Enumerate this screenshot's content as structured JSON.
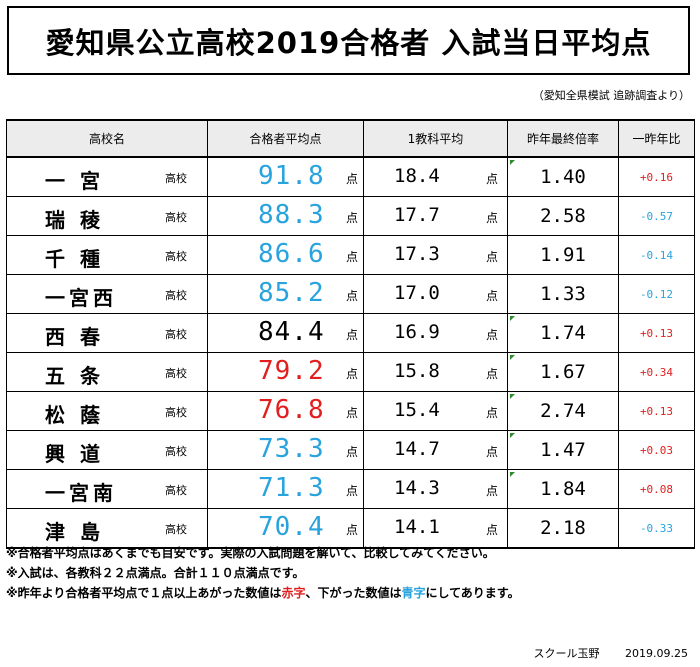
{
  "title": "愛知県公立高校2019合格者 入試当日平均点",
  "source": "（愛知全県模試 追跡調査より）",
  "table": {
    "headers": [
      "高校名",
      "合格者平均点",
      "1教科平均",
      "昨年最終倍率",
      "一昨年比"
    ],
    "kou_label": "高校",
    "ten_label": "点",
    "rows": [
      {
        "name": "一 宮",
        "avg": "91.8",
        "avg_color": "blue",
        "per": "18.4",
        "ratio": "1.40",
        "diff": "+0.16",
        "diff_color": "red"
      },
      {
        "name": "瑞 稜",
        "avg": "88.3",
        "avg_color": "blue",
        "per": "17.7",
        "ratio": "2.58",
        "diff": "-0.57",
        "diff_color": "blue"
      },
      {
        "name": "千 種",
        "avg": "86.6",
        "avg_color": "blue",
        "per": "17.3",
        "ratio": "1.91",
        "diff": "-0.14",
        "diff_color": "blue"
      },
      {
        "name": "一宮西",
        "avg": "85.2",
        "avg_color": "blue",
        "per": "17.0",
        "ratio": "1.33",
        "diff": "-0.12",
        "diff_color": "blue"
      },
      {
        "name": "西 春",
        "avg": "84.4",
        "avg_color": "black",
        "per": "16.9",
        "ratio": "1.74",
        "diff": "+0.13",
        "diff_color": "red"
      },
      {
        "name": "五 条",
        "avg": "79.2",
        "avg_color": "red",
        "per": "15.8",
        "ratio": "1.67",
        "diff": "+0.34",
        "diff_color": "red"
      },
      {
        "name": "松 蔭",
        "avg": "76.8",
        "avg_color": "red",
        "per": "15.4",
        "ratio": "2.74",
        "diff": "+0.13",
        "diff_color": "red"
      },
      {
        "name": "興 道",
        "avg": "73.3",
        "avg_color": "blue",
        "per": "14.7",
        "ratio": "1.47",
        "diff": "+0.03",
        "diff_color": "red"
      },
      {
        "name": "一宮南",
        "avg": "71.3",
        "avg_color": "blue",
        "per": "14.3",
        "ratio": "1.84",
        "diff": "+0.08",
        "diff_color": "red"
      },
      {
        "name": "津 島",
        "avg": "70.4",
        "avg_color": "blue",
        "per": "14.1",
        "ratio": "2.18",
        "diff": "-0.33",
        "diff_color": "blue"
      }
    ]
  },
  "notes": {
    "line1": "※合格者平均点はあくまでも目安です。実際の入試問題を解いて、比較してみてください。",
    "line2": "※入試は、各教科２２点満点。合計１１０点満点です。",
    "line3_a": "※昨年より合格者平均点で１点以上あがった数値は",
    "line3_red": "赤字",
    "line3_b": "、下がった数値は",
    "line3_blue": "青字",
    "line3_c": "にしてあります。"
  },
  "footer": {
    "school": "スクール玉野",
    "date": "2019.09.25"
  },
  "colors": {
    "blue": "#29a3dd",
    "red": "#e11f1f",
    "header_bg": "#ececec"
  }
}
